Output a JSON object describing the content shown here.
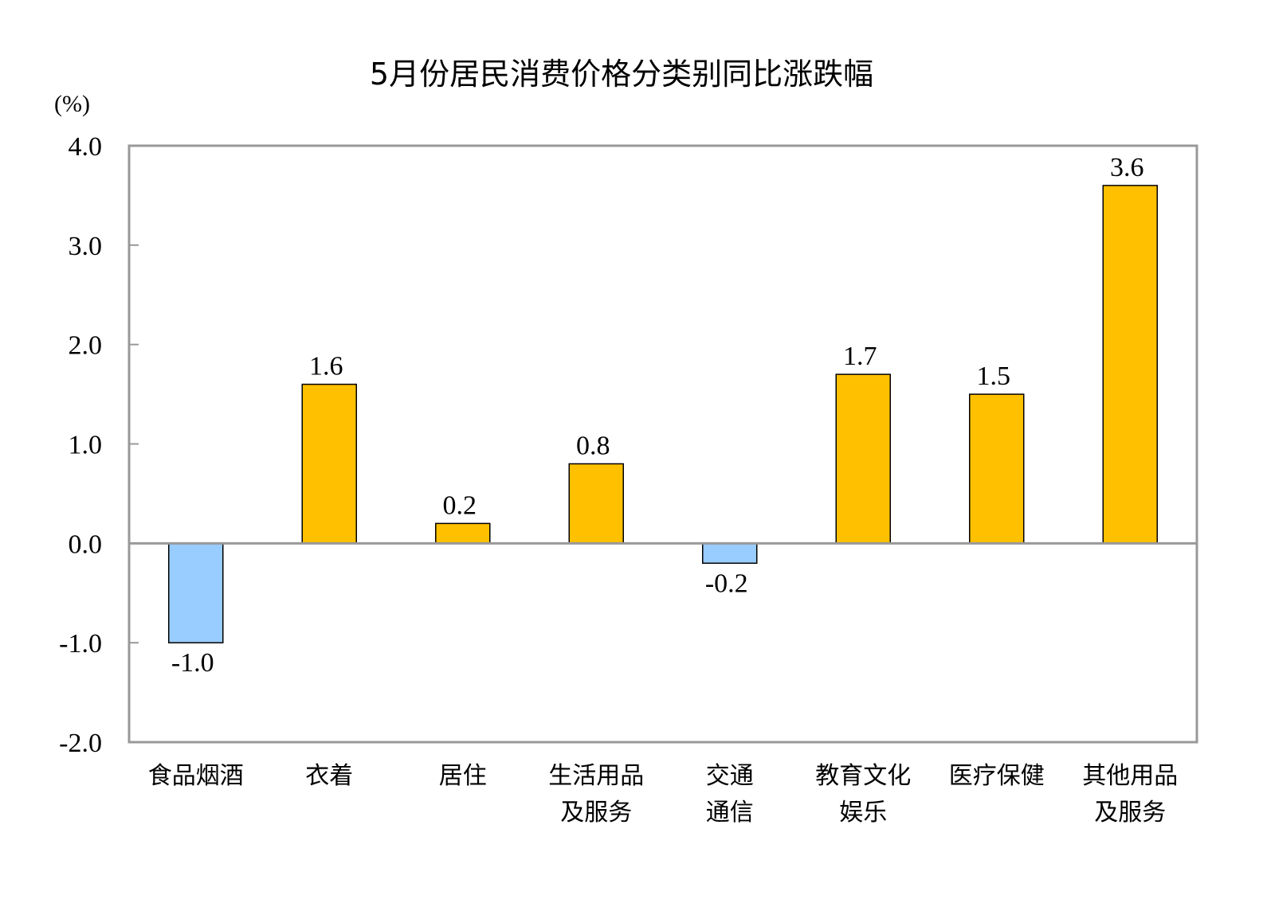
{
  "chart_data": {
    "type": "bar",
    "title": "5月份居民消费价格分类别同比涨跌幅",
    "ylabel": "(%)",
    "xlabel": "",
    "ylim": [
      -2.0,
      4.0
    ],
    "yticks": [
      "4.0",
      "3.0",
      "2.0",
      "1.0",
      "0.0",
      "-1.0",
      "-2.0"
    ],
    "ytick_values": [
      4,
      3,
      2,
      1,
      0,
      -1,
      -2
    ],
    "categories": [
      [
        "食品烟酒"
      ],
      [
        "衣着"
      ],
      [
        "居住"
      ],
      [
        "生活用品",
        "及服务"
      ],
      [
        "交通",
        "通信"
      ],
      [
        "教育文化",
        "娱乐"
      ],
      [
        "医疗保健"
      ],
      [
        "其他用品",
        "及服务"
      ]
    ],
    "values": [
      -1.0,
      1.6,
      0.2,
      0.8,
      -0.2,
      1.7,
      1.5,
      3.6
    ],
    "data_labels": [
      "-1.0",
      "1.6",
      "0.2",
      "0.8",
      "-0.2",
      "1.7",
      "1.5",
      "3.6"
    ],
    "grid": false,
    "colors": {
      "positive": "#FFC000",
      "negative": "#99CCFF",
      "axis": "#999999"
    }
  }
}
